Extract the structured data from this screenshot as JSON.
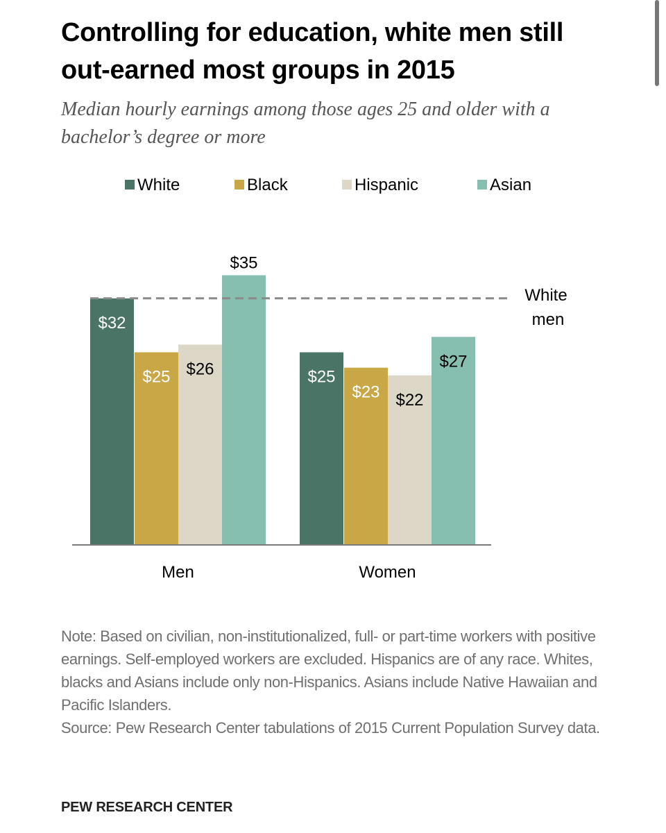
{
  "title": "Controlling for education, white men still out-earned most groups in 2015",
  "subtitle": "Median hourly earnings among those ages 25 and older with a bachelor’s degree or more",
  "legend": [
    {
      "label": "White",
      "color": "#4a7566"
    },
    {
      "label": "Black",
      "color": "#c9a646"
    },
    {
      "label": "Hispanic",
      "color": "#dcd7c7"
    },
    {
      "label": "Asian",
      "color": "#86bfaf"
    }
  ],
  "chart_data": {
    "type": "bar",
    "categories": [
      "Men",
      "Women"
    ],
    "series": [
      {
        "name": "White",
        "values": [
          32,
          25
        ],
        "labels": [
          "$32",
          "$25"
        ],
        "color": "#4a7566",
        "label_color": "#ffffff"
      },
      {
        "name": "Black",
        "values": [
          25,
          23
        ],
        "labels": [
          "$25",
          "$23"
        ],
        "color": "#c9a646",
        "label_color": "#ffffff"
      },
      {
        "name": "Hispanic",
        "values": [
          26,
          22
        ],
        "labels": [
          "$26",
          "$22"
        ],
        "color": "#dcd7c7",
        "label_color": "#000000"
      },
      {
        "name": "Asian",
        "values": [
          35,
          27
        ],
        "labels": [
          "$35",
          "$27"
        ],
        "color": "#86bfaf",
        "label_color": "#000000"
      }
    ],
    "reference_line": {
      "value": 32,
      "label_line1": "White",
      "label_line2": "men"
    },
    "ylim": [
      0,
      35
    ],
    "title": "Controlling for education, white men still out-earned most groups in 2015",
    "xlabel": "",
    "ylabel": ""
  },
  "note": "Note: Based on civilian, non-institutionalized, full- or part-time workers with positive earnings. Self-employed workers are excluded. Hispanics are of any race. Whites, blacks and Asians include only non-Hispanics. Asians include Native Hawaiian and Pacific Islanders.",
  "source": "Source: Pew Research Center tabulations of 2015 Current Population Survey data.",
  "org": "PEW RESEARCH CENTER"
}
